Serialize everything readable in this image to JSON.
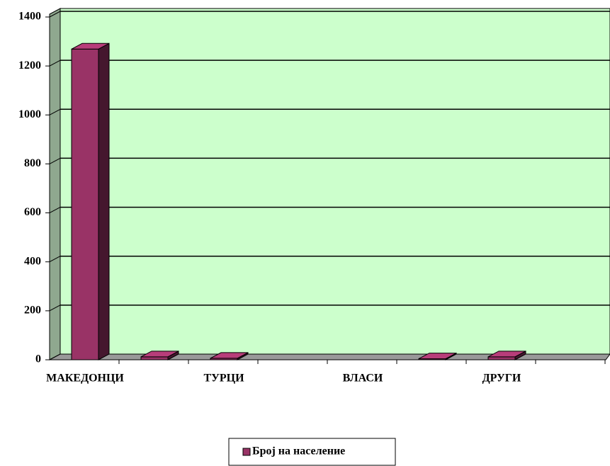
{
  "chart_data": {
    "type": "bar",
    "categories": [
      "МАКЕДОНЦИ",
      null,
      "ТУРЦИ",
      null,
      "ВЛАСИ",
      null,
      "ДРУГИ",
      null
    ],
    "series": [
      {
        "name": "Број на население",
        "color": "#993366",
        "values": [
          1269,
          12,
          6,
          null,
          null,
          4,
          12,
          null
        ]
      }
    ],
    "ylim": [
      0,
      1400
    ],
    "yticks": [
      0,
      200,
      400,
      600,
      800,
      1000,
      1200,
      1400
    ],
    "grid": true,
    "legend": "bottom"
  }
}
